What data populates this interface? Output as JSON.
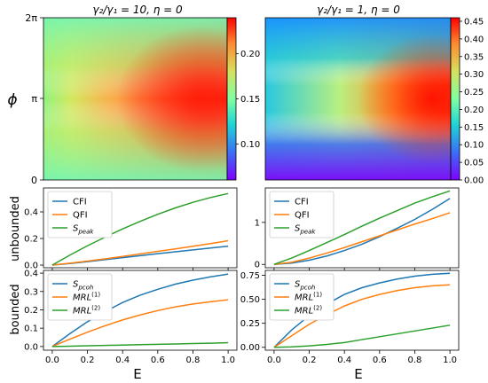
{
  "chart_data": [
    {
      "type": "heatmap",
      "title": "γ₂/γ₁ = 10, η = 0",
      "ylabel": "ϕ",
      "yticks": [
        "0",
        "π",
        "2π"
      ],
      "xlim": [
        0,
        1
      ],
      "colormap": "rainbow",
      "colorbar_ticks": [
        "0.10",
        "0.15",
        "0.20"
      ],
      "colorbar_range": [
        0.06,
        0.24
      ],
      "description_values": {
        "max": 0.24,
        "min": 0.06
      }
    },
    {
      "type": "heatmap",
      "title": "γ₂/γ₁ = 1, η = 0",
      "xlim": [
        0,
        1
      ],
      "colormap": "rainbow",
      "colorbar_ticks": [
        "0.00",
        "0.05",
        "0.10",
        "0.15",
        "0.20",
        "0.25",
        "0.30",
        "0.35",
        "0.40",
        "0.45"
      ],
      "colorbar_range": [
        0.0,
        0.46
      ]
    },
    {
      "type": "line",
      "ylabel": "unbounded",
      "ylim": [
        -0.02,
        0.58
      ],
      "yticks": [
        "0.0",
        "0.2",
        "0.4"
      ],
      "x": [
        0,
        0.1,
        0.2,
        0.3,
        0.4,
        0.5,
        0.6,
        0.7,
        0.8,
        0.9,
        1.0
      ],
      "series": [
        {
          "name": "CFI",
          "color": "#1f77b4",
          "values": [
            0,
            0.012,
            0.026,
            0.041,
            0.056,
            0.071,
            0.086,
            0.1,
            0.114,
            0.128,
            0.142
          ]
        },
        {
          "name": "QFI",
          "color": "#ff7f0e",
          "values": [
            0,
            0.014,
            0.03,
            0.047,
            0.065,
            0.084,
            0.103,
            0.122,
            0.142,
            0.162,
            0.183
          ]
        },
        {
          "name": "S_peak",
          "color": "#2ca02c",
          "values": [
            0,
            0.075,
            0.145,
            0.21,
            0.272,
            0.329,
            0.382,
            0.43,
            0.472,
            0.508,
            0.538
          ]
        }
      ]
    },
    {
      "type": "line",
      "ylim": [
        -0.08,
        1.82
      ],
      "yticks": [
        "0",
        "1"
      ],
      "x": [
        0,
        0.1,
        0.2,
        0.3,
        0.4,
        0.5,
        0.6,
        0.7,
        0.8,
        0.9,
        1.0
      ],
      "series": [
        {
          "name": "CFI",
          "color": "#1f77b4",
          "values": [
            0,
            0.03,
            0.1,
            0.2,
            0.33,
            0.48,
            0.66,
            0.86,
            1.07,
            1.31,
            1.57
          ]
        },
        {
          "name": "QFI",
          "color": "#ff7f0e",
          "values": [
            0,
            0.05,
            0.15,
            0.27,
            0.4,
            0.54,
            0.68,
            0.82,
            0.96,
            1.09,
            1.23
          ]
        },
        {
          "name": "S_peak",
          "color": "#2ca02c",
          "values": [
            0,
            0.15,
            0.33,
            0.52,
            0.71,
            0.91,
            1.1,
            1.28,
            1.46,
            1.61,
            1.75
          ]
        }
      ]
    },
    {
      "type": "line",
      "ylabel": "bounded",
      "xlabel": "E",
      "ylim": [
        -0.02,
        0.415
      ],
      "yticks": [
        "0.0",
        "0.1",
        "0.2",
        "0.3",
        "0.4"
      ],
      "xticks": [
        "0.0",
        "0.2",
        "0.4",
        "0.6",
        "0.8",
        "1.0"
      ],
      "x": [
        0,
        0.1,
        0.2,
        0.3,
        0.4,
        0.5,
        0.6,
        0.7,
        0.8,
        0.9,
        1.0
      ],
      "series": [
        {
          "name": "S_pcoh",
          "color": "#1f77b4",
          "values": [
            0,
            0.07,
            0.135,
            0.19,
            0.24,
            0.28,
            0.312,
            0.34,
            0.362,
            0.38,
            0.395
          ]
        },
        {
          "name": "MRL(1)",
          "color": "#ff7f0e",
          "values": [
            0,
            0.04,
            0.078,
            0.113,
            0.145,
            0.172,
            0.196,
            0.216,
            0.232,
            0.244,
            0.255
          ]
        },
        {
          "name": "MRL(2)",
          "color": "#2ca02c",
          "values": [
            0,
            0.002,
            0.004,
            0.006,
            0.008,
            0.01,
            0.012,
            0.014,
            0.016,
            0.018,
            0.021
          ]
        }
      ]
    },
    {
      "type": "line",
      "xlabel": "E",
      "ylim": [
        -0.03,
        0.8
      ],
      "yticks": [
        "0.00",
        "0.25",
        "0.50",
        "0.75"
      ],
      "xticks": [
        "0.0",
        "0.2",
        "0.4",
        "0.6",
        "0.8",
        "1.0"
      ],
      "x": [
        0,
        0.1,
        0.2,
        0.3,
        0.4,
        0.5,
        0.6,
        0.7,
        0.8,
        0.9,
        1.0
      ],
      "series": [
        {
          "name": "S_pcoh",
          "color": "#1f77b4",
          "values": [
            0,
            0.18,
            0.33,
            0.45,
            0.55,
            0.62,
            0.67,
            0.71,
            0.74,
            0.76,
            0.77
          ]
        },
        {
          "name": "MRL(1)",
          "color": "#ff7f0e",
          "values": [
            0,
            0.12,
            0.24,
            0.34,
            0.43,
            0.5,
            0.55,
            0.59,
            0.62,
            0.64,
            0.65
          ]
        },
        {
          "name": "MRL(2)",
          "color": "#2ca02c",
          "values": [
            0,
            0.005,
            0.015,
            0.03,
            0.05,
            0.08,
            0.11,
            0.14,
            0.17,
            0.2,
            0.23
          ]
        }
      ]
    }
  ]
}
